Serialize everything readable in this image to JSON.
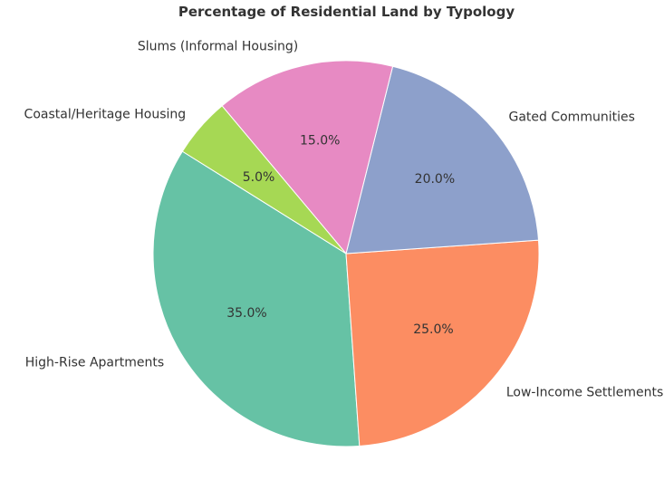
{
  "chart_data": {
    "type": "pie",
    "title": "Percentage of Residential Land by Typology",
    "start_angle_deg": 148,
    "direction": "counterclockwise",
    "slices": [
      {
        "label": "High-Rise Apartments",
        "value": 35.0,
        "pct_label": "35.0%",
        "color": "#66c2a5"
      },
      {
        "label": "Low-Income Settlements",
        "value": 25.0,
        "pct_label": "25.0%",
        "color": "#fc8d62"
      },
      {
        "label": "Gated Communities",
        "value": 20.0,
        "pct_label": "20.0%",
        "color": "#8da0cb"
      },
      {
        "label": "Slums (Informal Housing)",
        "value": 15.0,
        "pct_label": "15.0%",
        "color": "#e78ac3"
      },
      {
        "label": "Coastal/Heritage Housing",
        "value": 5.0,
        "pct_label": "5.0%",
        "color": "#a6d854"
      }
    ]
  }
}
